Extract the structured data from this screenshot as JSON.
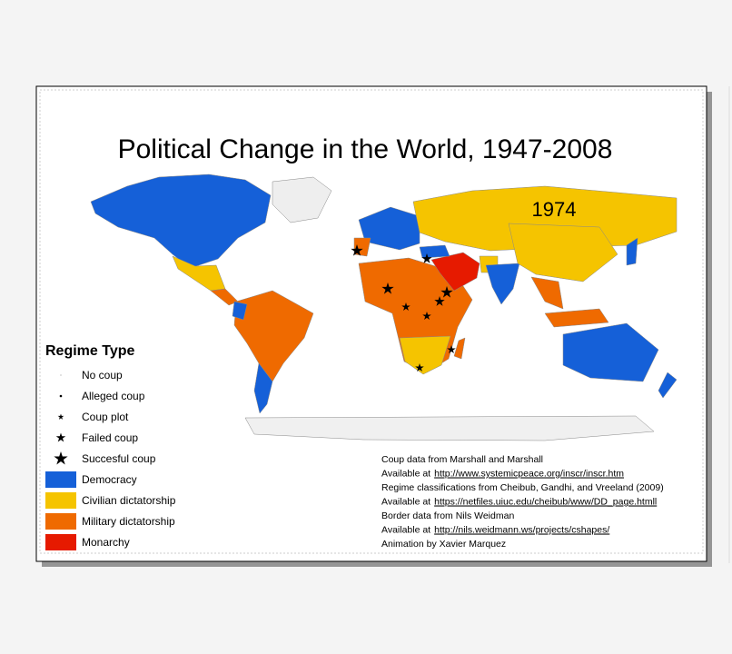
{
  "title": "Political Change in the World, 1947-2008",
  "year": "1974",
  "legend": {
    "title": "Regime Type",
    "coups": [
      "No coup",
      "Alleged coup",
      "Coup plot",
      "Failed coup",
      "Succesful coup"
    ],
    "regimes": [
      "Democracy",
      "Civilian dictatorship",
      "Military dictatorship",
      "Monarchy"
    ]
  },
  "credits": [
    {
      "text": "Coup data from Marshall and Marshall"
    },
    {
      "text": "Available at",
      "link": "http://www.systemicpeace.org/inscr/inscr.htm"
    },
    {
      "text": "Regime classifications from Cheibub, Gandhi, and Vreeland (2009)"
    },
    {
      "text": "Available at",
      "link": "https://netfiles.uiuc.edu/cheibub/www/DD_page.htmll"
    },
    {
      "text": "Border data from Nils Weidman"
    },
    {
      "text": "Available at",
      "link": "http://nils.weidmann.ws/projects/cshapes/"
    },
    {
      "text": "Animation by Xavier Marquez"
    }
  ]
}
